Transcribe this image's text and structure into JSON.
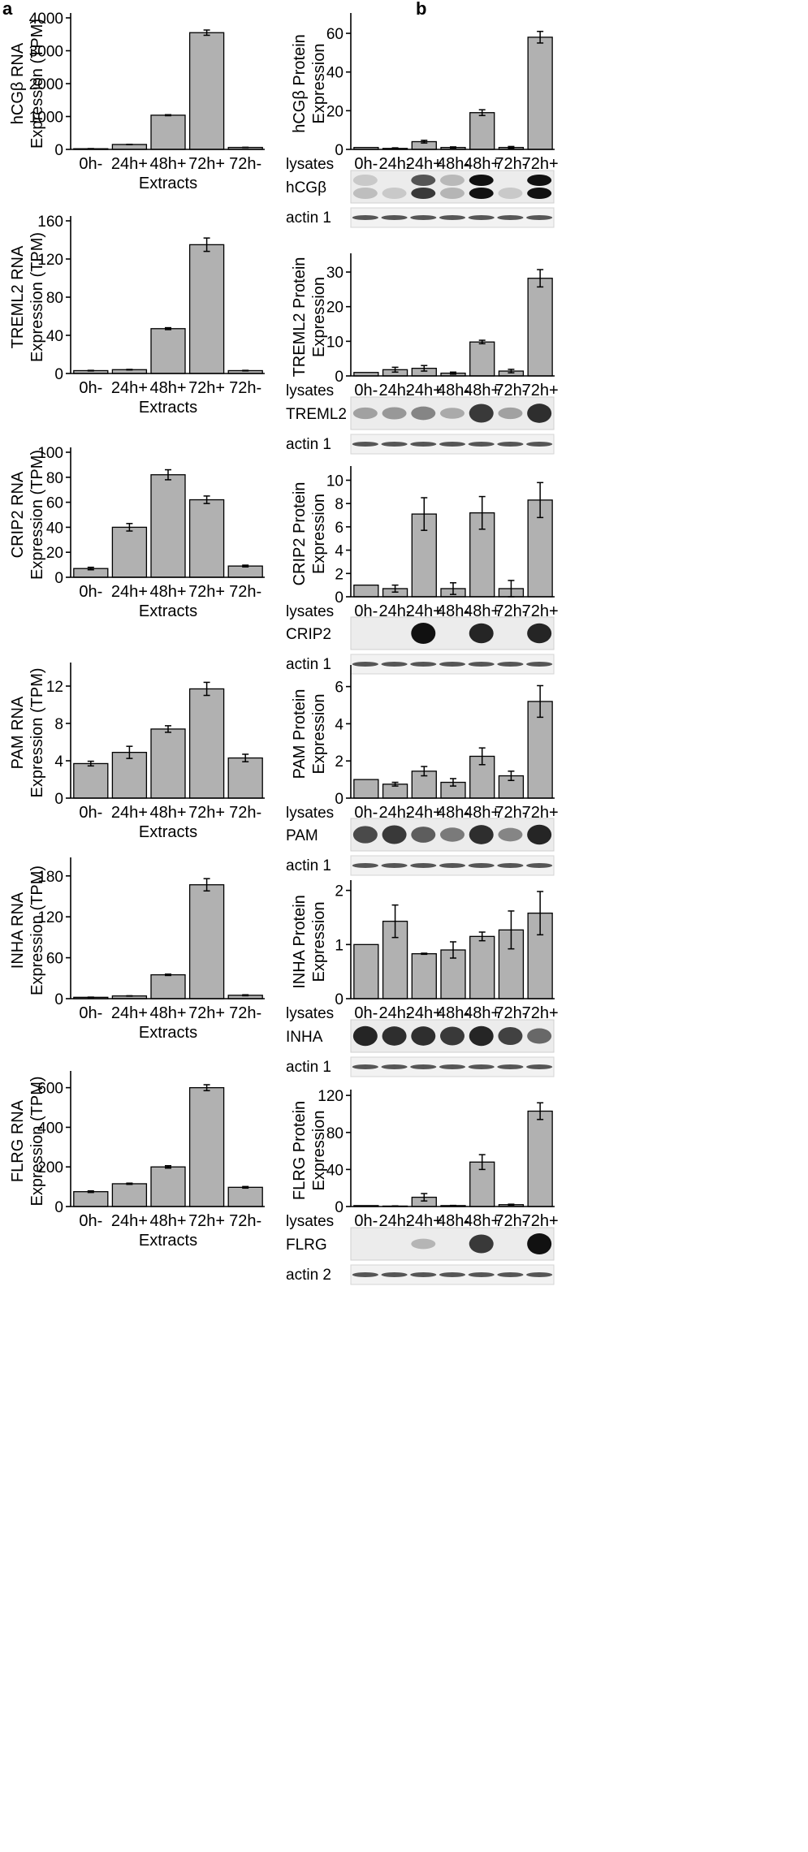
{
  "figure": {
    "panel_a_label": "a",
    "panel_b_label": "b",
    "blot_row_label": "lysates"
  },
  "chart_data": [
    {
      "type": "bar",
      "column": "a",
      "row": 0,
      "ylabel_lines": [
        "hCGβ RNA",
        "Expression (TPM)"
      ],
      "xlabel": "Extracts",
      "categories": [
        "0h-",
        "24h+",
        "48h+",
        "72h+",
        "72h-"
      ],
      "values": [
        20,
        150,
        1040,
        3550,
        60
      ],
      "errors": [
        5,
        5,
        15,
        80,
        5
      ],
      "ylim": [
        0,
        4000
      ],
      "yticks": [
        0,
        1000,
        2000,
        3000,
        4000
      ]
    },
    {
      "type": "bar",
      "column": "a",
      "row": 1,
      "ylabel_lines": [
        "TREML2 RNA",
        "Expression (TPM)"
      ],
      "xlabel": "Extracts",
      "categories": [
        "0h-",
        "24h+",
        "48h+",
        "72h+",
        "72h-"
      ],
      "values": [
        3,
        4,
        47,
        135,
        3
      ],
      "errors": [
        0.3,
        0.3,
        1,
        7,
        0.3
      ],
      "ylim": [
        0,
        160
      ],
      "yticks": [
        0,
        40,
        80,
        120,
        160
      ]
    },
    {
      "type": "bar",
      "column": "a",
      "row": 2,
      "ylabel_lines": [
        "CRIP2 RNA",
        "Expression (TPM)"
      ],
      "xlabel": "Extracts",
      "categories": [
        "0h-",
        "24h+",
        "48h+",
        "72h+",
        "72h-"
      ],
      "values": [
        7,
        40,
        82,
        62,
        9
      ],
      "errors": [
        1,
        3,
        4,
        3,
        0.7
      ],
      "ylim": [
        0,
        100
      ],
      "yticks": [
        0,
        20,
        40,
        60,
        80,
        100
      ]
    },
    {
      "type": "bar",
      "column": "a",
      "row": 3,
      "ylabel_lines": [
        "PAM RNA",
        "Expression (TPM)"
      ],
      "xlabel": "Extracts",
      "categories": [
        "0h-",
        "24h+",
        "48h+",
        "72h+",
        "72h-"
      ],
      "values": [
        3.7,
        4.9,
        7.4,
        11.7,
        4.3
      ],
      "errors": [
        0.25,
        0.65,
        0.35,
        0.7,
        0.4
      ],
      "ylim": [
        0,
        14
      ],
      "yticks": [
        0,
        4,
        8,
        12
      ]
    },
    {
      "type": "bar",
      "column": "a",
      "row": 4,
      "ylabel_lines": [
        "INHA RNA",
        "Expression (TPM)"
      ],
      "xlabel": "Extracts",
      "categories": [
        "0h-",
        "24h+",
        "48h+",
        "72h+",
        "72h-"
      ],
      "values": [
        2,
        4,
        35,
        167,
        5
      ],
      "errors": [
        0.3,
        0.3,
        1,
        9,
        0.7
      ],
      "ylim": [
        0,
        200
      ],
      "yticks": [
        0,
        60,
        120,
        180
      ]
    },
    {
      "type": "bar",
      "column": "a",
      "row": 5,
      "ylabel_lines": [
        "FLRG RNA",
        "Expression (TPM)"
      ],
      "xlabel": "Extracts",
      "categories": [
        "0h-",
        "24h+",
        "48h+",
        "72h+",
        "72h-"
      ],
      "values": [
        75,
        115,
        200,
        600,
        97
      ],
      "errors": [
        4,
        3,
        6,
        15,
        4
      ],
      "ylim": [
        0,
        660
      ],
      "yticks": [
        0,
        200,
        400,
        600
      ]
    },
    {
      "type": "bar",
      "column": "b",
      "row": 0,
      "ylabel_lines": [
        "hCGβ Protein",
        "Expression"
      ],
      "categories": [
        "0h-",
        "24h-",
        "24h+",
        "48h-",
        "48h+",
        "72h-",
        "72h+"
      ],
      "values": [
        1,
        0.5,
        4,
        1,
        19,
        1,
        58
      ],
      "errors": [
        0,
        0.3,
        0.7,
        0.3,
        1.5,
        0.5,
        3
      ],
      "ylim": [
        0,
        68
      ],
      "yticks": [
        0,
        20,
        40,
        60
      ],
      "blot_rows": [
        "hCGβ",
        "actin 1"
      ]
    },
    {
      "type": "bar",
      "column": "b",
      "row": 1,
      "ylabel_lines": [
        "TREML2 Protein",
        "Expression"
      ],
      "categories": [
        "0h-",
        "24h-",
        "24h+",
        "48h-",
        "48h+",
        "72h-",
        "72h+"
      ],
      "values": [
        1,
        1.8,
        2.2,
        0.8,
        9.8,
        1.4,
        28.2
      ],
      "errors": [
        0,
        0.7,
        0.8,
        0.3,
        0.5,
        0.5,
        2.5
      ],
      "ylim": [
        0,
        34
      ],
      "yticks": [
        0,
        10,
        20,
        30
      ],
      "blot_rows": [
        "TREML2",
        "actin 1"
      ]
    },
    {
      "type": "bar",
      "column": "b",
      "row": 2,
      "ylabel_lines": [
        "CRIP2 Protein",
        "Expression"
      ],
      "categories": [
        "0h-",
        "24h-",
        "24h+",
        "48h-",
        "48h+",
        "72h-",
        "72h+"
      ],
      "values": [
        1,
        0.7,
        7.1,
        0.7,
        7.2,
        0.7,
        8.3
      ],
      "errors": [
        0,
        0.3,
        1.4,
        0.5,
        1.4,
        0.7,
        1.5
      ],
      "ylim": [
        0,
        10.8
      ],
      "yticks": [
        0,
        2,
        4,
        6,
        8,
        10
      ],
      "blot_rows": [
        "CRIP2",
        "actin 1"
      ]
    },
    {
      "type": "bar",
      "column": "b",
      "row": 3,
      "ylabel_lines": [
        "PAM Protein",
        "Expression"
      ],
      "categories": [
        "0h-",
        "24h-",
        "24h+",
        "48h-",
        "48h+",
        "72h-",
        "72h+"
      ],
      "values": [
        1,
        0.75,
        1.45,
        0.85,
        2.25,
        1.2,
        5.2
      ],
      "errors": [
        0,
        0.1,
        0.25,
        0.2,
        0.45,
        0.25,
        0.85
      ],
      "ylim": [
        0,
        6.9
      ],
      "yticks": [
        0,
        2,
        4,
        6
      ],
      "blot_rows": [
        "PAM",
        "actin 1"
      ]
    },
    {
      "type": "bar",
      "column": "b",
      "row": 4,
      "ylabel_lines": [
        "INHA Protein",
        "Expression"
      ],
      "categories": [
        "0h-",
        "24h-",
        "24h+",
        "48h-",
        "48h+",
        "72h-",
        "72h+"
      ],
      "values": [
        1,
        1.43,
        0.83,
        0.9,
        1.15,
        1.27,
        1.58
      ],
      "errors": [
        0,
        0.3,
        0.01,
        0.15,
        0.08,
        0.35,
        0.4
      ],
      "ylim": [
        0,
        2.1
      ],
      "yticks": [
        0,
        1,
        2
      ],
      "blot_rows": [
        "INHA",
        "actin 1"
      ]
    },
    {
      "type": "bar",
      "column": "b",
      "row": 5,
      "ylabel_lines": [
        "FLRG Protein",
        "Expression"
      ],
      "categories": [
        "0h-",
        "24h-",
        "24h+",
        "48h-",
        "48h+",
        "72h-",
        "72h+"
      ],
      "values": [
        1,
        0.5,
        10,
        1,
        48,
        2,
        103
      ],
      "errors": [
        0,
        0.2,
        4,
        0.2,
        8,
        0.5,
        9
      ],
      "ylim": [
        0,
        121
      ],
      "yticks": [
        0,
        40,
        80,
        120
      ],
      "blot_rows": [
        "FLRG",
        "actin 2"
      ]
    }
  ]
}
